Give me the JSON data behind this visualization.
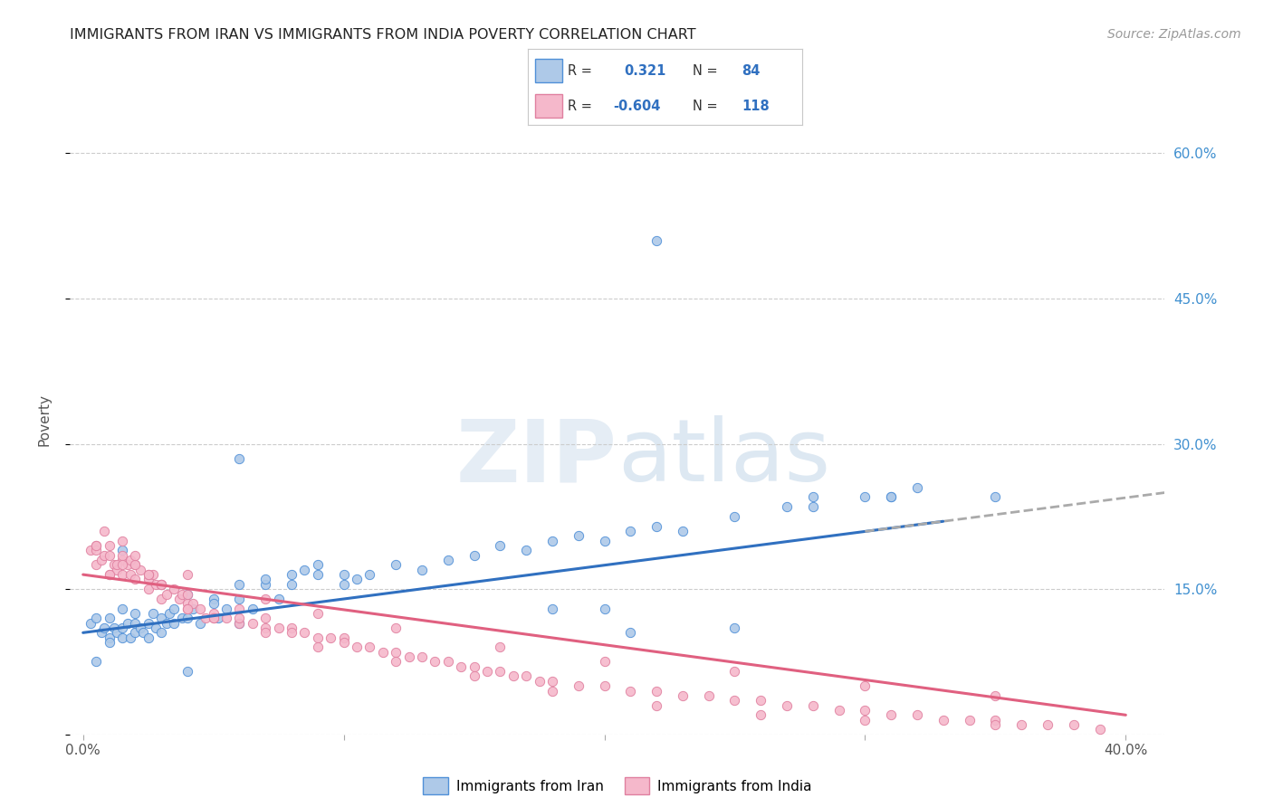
{
  "title": "IMMIGRANTS FROM IRAN VS IMMIGRANTS FROM INDIA POVERTY CORRELATION CHART",
  "source": "Source: ZipAtlas.com",
  "ylabel": "Poverty",
  "yticks": [
    0.0,
    0.15,
    0.3,
    0.45,
    0.6
  ],
  "ytick_labels": [
    "",
    "15.0%",
    "30.0%",
    "45.0%",
    "60.0%"
  ],
  "xlim": [
    0.0,
    0.4
  ],
  "ylim": [
    0.0,
    0.65
  ],
  "iran_R": 0.321,
  "iran_N": 84,
  "india_R": -0.604,
  "india_N": 118,
  "iran_color": "#aec9e8",
  "iran_line_color": "#3070c0",
  "iran_edge_color": "#5090d8",
  "india_color": "#f5b8cb",
  "india_line_color": "#e06080",
  "india_edge_color": "#e080a0",
  "background_color": "#ffffff",
  "iran_scatter_x": [
    0.003,
    0.005,
    0.007,
    0.008,
    0.01,
    0.01,
    0.01,
    0.012,
    0.013,
    0.015,
    0.015,
    0.015,
    0.017,
    0.018,
    0.02,
    0.02,
    0.02,
    0.022,
    0.023,
    0.025,
    0.025,
    0.027,
    0.028,
    0.03,
    0.03,
    0.032,
    0.033,
    0.035,
    0.035,
    0.038,
    0.04,
    0.04,
    0.042,
    0.045,
    0.05,
    0.05,
    0.052,
    0.055,
    0.06,
    0.06,
    0.065,
    0.07,
    0.07,
    0.075,
    0.08,
    0.08,
    0.085,
    0.09,
    0.09,
    0.1,
    0.1,
    0.105,
    0.11,
    0.12,
    0.13,
    0.14,
    0.15,
    0.16,
    0.17,
    0.18,
    0.19,
    0.2,
    0.21,
    0.22,
    0.23,
    0.25,
    0.27,
    0.28,
    0.3,
    0.31,
    0.32,
    0.35,
    0.22,
    0.06,
    0.04,
    0.015,
    0.28,
    0.31,
    0.005,
    0.18,
    0.06,
    0.21,
    0.2,
    0.25
  ],
  "iran_scatter_y": [
    0.115,
    0.12,
    0.105,
    0.11,
    0.1,
    0.12,
    0.095,
    0.11,
    0.105,
    0.13,
    0.11,
    0.1,
    0.115,
    0.1,
    0.125,
    0.105,
    0.115,
    0.11,
    0.105,
    0.115,
    0.1,
    0.125,
    0.11,
    0.12,
    0.105,
    0.115,
    0.125,
    0.13,
    0.115,
    0.12,
    0.145,
    0.12,
    0.13,
    0.115,
    0.14,
    0.135,
    0.12,
    0.13,
    0.14,
    0.155,
    0.13,
    0.155,
    0.16,
    0.14,
    0.165,
    0.155,
    0.17,
    0.175,
    0.165,
    0.155,
    0.165,
    0.16,
    0.165,
    0.175,
    0.17,
    0.18,
    0.185,
    0.195,
    0.19,
    0.2,
    0.205,
    0.2,
    0.21,
    0.215,
    0.21,
    0.225,
    0.235,
    0.235,
    0.245,
    0.245,
    0.255,
    0.245,
    0.51,
    0.285,
    0.065,
    0.19,
    0.245,
    0.245,
    0.075,
    0.13,
    0.115,
    0.105,
    0.13,
    0.11
  ],
  "india_scatter_x": [
    0.003,
    0.005,
    0.005,
    0.007,
    0.008,
    0.01,
    0.01,
    0.012,
    0.013,
    0.015,
    0.015,
    0.017,
    0.018,
    0.02,
    0.02,
    0.022,
    0.025,
    0.025,
    0.027,
    0.028,
    0.03,
    0.03,
    0.032,
    0.035,
    0.037,
    0.038,
    0.04,
    0.04,
    0.042,
    0.045,
    0.047,
    0.05,
    0.05,
    0.055,
    0.06,
    0.06,
    0.065,
    0.07,
    0.07,
    0.075,
    0.08,
    0.08,
    0.085,
    0.09,
    0.095,
    0.1,
    0.1,
    0.105,
    0.11,
    0.115,
    0.12,
    0.125,
    0.13,
    0.135,
    0.14,
    0.145,
    0.15,
    0.155,
    0.16,
    0.165,
    0.17,
    0.175,
    0.18,
    0.19,
    0.2,
    0.21,
    0.22,
    0.23,
    0.24,
    0.25,
    0.26,
    0.27,
    0.28,
    0.29,
    0.3,
    0.31,
    0.32,
    0.33,
    0.34,
    0.35,
    0.36,
    0.37,
    0.38,
    0.39,
    0.005,
    0.008,
    0.01,
    0.013,
    0.015,
    0.018,
    0.02,
    0.025,
    0.03,
    0.04,
    0.05,
    0.07,
    0.09,
    0.12,
    0.15,
    0.18,
    0.22,
    0.26,
    0.3,
    0.35,
    0.015,
    0.04,
    0.07,
    0.09,
    0.12,
    0.16,
    0.2,
    0.25,
    0.3,
    0.35,
    0.005,
    0.01,
    0.015,
    0.02,
    0.025,
    0.03,
    0.04,
    0.06
  ],
  "india_scatter_y": [
    0.19,
    0.195,
    0.175,
    0.18,
    0.185,
    0.195,
    0.165,
    0.175,
    0.17,
    0.18,
    0.165,
    0.175,
    0.165,
    0.175,
    0.16,
    0.17,
    0.16,
    0.15,
    0.165,
    0.155,
    0.155,
    0.14,
    0.145,
    0.15,
    0.14,
    0.145,
    0.135,
    0.13,
    0.135,
    0.13,
    0.12,
    0.125,
    0.12,
    0.12,
    0.115,
    0.12,
    0.115,
    0.11,
    0.12,
    0.11,
    0.11,
    0.105,
    0.105,
    0.1,
    0.1,
    0.1,
    0.095,
    0.09,
    0.09,
    0.085,
    0.085,
    0.08,
    0.08,
    0.075,
    0.075,
    0.07,
    0.07,
    0.065,
    0.065,
    0.06,
    0.06,
    0.055,
    0.055,
    0.05,
    0.05,
    0.045,
    0.045,
    0.04,
    0.04,
    0.035,
    0.035,
    0.03,
    0.03,
    0.025,
    0.025,
    0.02,
    0.02,
    0.015,
    0.015,
    0.015,
    0.01,
    0.01,
    0.01,
    0.005,
    0.19,
    0.21,
    0.185,
    0.175,
    0.185,
    0.18,
    0.175,
    0.165,
    0.155,
    0.13,
    0.12,
    0.105,
    0.09,
    0.075,
    0.06,
    0.045,
    0.03,
    0.02,
    0.015,
    0.01,
    0.2,
    0.165,
    0.14,
    0.125,
    0.11,
    0.09,
    0.075,
    0.065,
    0.05,
    0.04,
    0.195,
    0.165,
    0.175,
    0.185,
    0.165,
    0.155,
    0.145,
    0.13
  ]
}
